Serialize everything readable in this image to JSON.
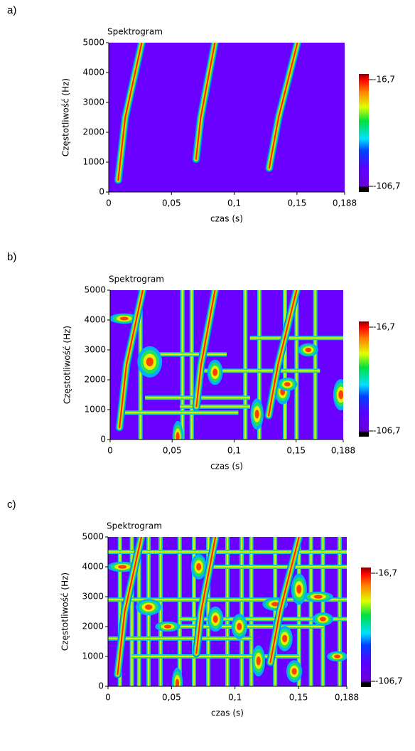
{
  "chart_data": [
    {
      "type": "heatmap",
      "panel_label": "a)",
      "title": "Spektrogram",
      "x_label": "czas (s)",
      "y_label": "Częstotliwość (Hz)",
      "xlim": [
        0,
        0.188
      ],
      "xticks": [
        0,
        {
          "value": 0.05,
          "label": "0,05"
        },
        {
          "value": 0.1,
          "label": "0,1"
        },
        {
          "value": 0.15,
          "label": "0,15"
        },
        {
          "value": 0.188,
          "label": "0,188"
        }
      ],
      "ylim": [
        0,
        5000
      ],
      "yticks": [
        0,
        1000,
        2000,
        3000,
        4000,
        5000
      ],
      "clim": [
        -106.7,
        -16.7
      ],
      "colorbar_ticks": [
        {
          "value": -16.7,
          "label": "-16,7"
        },
        {
          "value": -106.7,
          "label": "-106,7"
        }
      ]
    },
    {
      "type": "heatmap",
      "panel_label": "b)",
      "title": "Spektrogram",
      "x_label": "czas (s)",
      "y_label": "Częstotliwość (Hz)",
      "xlim": [
        0,
        0.188
      ],
      "xticks": [
        0,
        {
          "value": 0.05,
          "label": "0,05"
        },
        {
          "value": 0.1,
          "label": "0,1"
        },
        {
          "value": 0.15,
          "label": "0,15"
        },
        {
          "value": 0.188,
          "label": "0,188"
        }
      ],
      "ylim": [
        0,
        5000
      ],
      "yticks": [
        0,
        1000,
        2000,
        3000,
        4000,
        5000
      ],
      "clim": [
        -106.7,
        -16.7
      ],
      "colorbar_ticks": [
        {
          "value": -16.7,
          "label": "-16,7"
        },
        {
          "value": -106.7,
          "label": "-106,7"
        }
      ]
    },
    {
      "type": "heatmap",
      "panel_label": "c)",
      "title": "Spektrogram",
      "x_label": "czas (s)",
      "y_label": "Częstotliwość (Hz)",
      "xlim": [
        0,
        0.188
      ],
      "xticks": [
        0,
        {
          "value": 0.05,
          "label": "0,05"
        },
        {
          "value": 0.1,
          "label": "0,1"
        },
        {
          "value": 0.15,
          "label": "0,15"
        },
        {
          "value": 0.188,
          "label": "0,188"
        }
      ],
      "ylim": [
        0,
        5000
      ],
      "yticks": [
        0,
        1000,
        2000,
        3000,
        4000,
        5000
      ],
      "clim": [
        -106.7,
        -16.7
      ],
      "colorbar_ticks": [
        {
          "value": -16.7,
          "label": "-16,7"
        },
        {
          "value": -106.7,
          "label": "-106,7"
        }
      ]
    }
  ]
}
